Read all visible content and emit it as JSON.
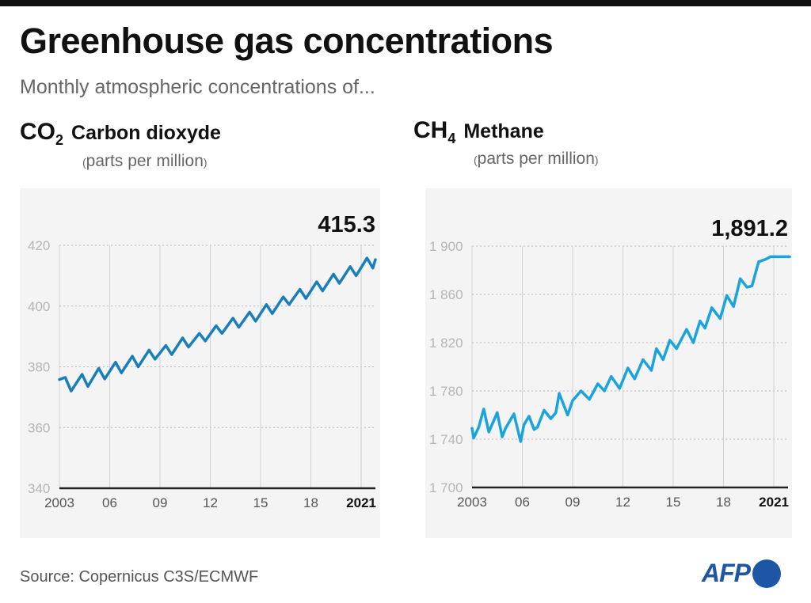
{
  "header": {
    "title": "Greenhouse gas concentrations",
    "subtitle": "Monthly atmospheric concentrations of..."
  },
  "source": "Source: Copernicus C3S/ECMWF",
  "logo": {
    "text": "AFP",
    "color": "#1e56a6"
  },
  "chart_data": [
    {
      "type": "line",
      "formula": "CO",
      "formula_sub": "2",
      "title": "Carbon dioxyde",
      "unit": "parts per million",
      "latest_value": "415.3",
      "color": "#1a7fb8",
      "ylim": [
        340,
        420
      ],
      "yticks": [
        "340",
        "360",
        "380",
        "400",
        "420"
      ],
      "xlim": [
        2003,
        2021.85
      ],
      "xticks": [
        {
          "x": 2003,
          "label": "2003"
        },
        {
          "x": 2006,
          "label": "06"
        },
        {
          "x": 2009,
          "label": "09"
        },
        {
          "x": 2012,
          "label": "12"
        },
        {
          "x": 2015,
          "label": "15"
        },
        {
          "x": 2018,
          "label": "18"
        },
        {
          "x": 2021,
          "label": "2021",
          "bold": true
        }
      ],
      "grid": true,
      "x": [
        2003.0,
        2003.35,
        2003.7,
        2004.35,
        2004.7,
        2005.35,
        2005.7,
        2006.35,
        2006.7,
        2007.35,
        2007.7,
        2008.35,
        2008.7,
        2009.35,
        2009.7,
        2010.35,
        2010.7,
        2011.35,
        2011.7,
        2012.35,
        2012.7,
        2013.35,
        2013.7,
        2014.35,
        2014.7,
        2015.35,
        2015.7,
        2016.35,
        2016.7,
        2017.35,
        2017.7,
        2018.35,
        2018.7,
        2019.35,
        2019.7,
        2020.35,
        2020.7,
        2021.35,
        2021.7,
        2021.85
      ],
      "y": [
        375.8,
        376.5,
        372,
        377.5,
        373.5,
        379.5,
        376,
        381.5,
        378,
        383.5,
        380,
        385.5,
        382.5,
        387,
        384,
        389.5,
        386.5,
        391,
        388.5,
        393.5,
        391,
        396,
        393,
        398,
        395,
        400.5,
        397.5,
        403,
        400.5,
        405.5,
        402.5,
        408,
        405,
        410.5,
        407.5,
        413,
        410,
        415.8,
        412.5,
        415.3
      ]
    },
    {
      "type": "line",
      "formula": "CH",
      "formula_sub": "4",
      "title": "Methane",
      "unit": "parts per million",
      "latest_value": "1,891.2",
      "color": "#1ba3dc",
      "ylim": [
        1700,
        1900
      ],
      "yticks": [
        "1 700",
        "1 740",
        "1 780",
        "1 820",
        "1 860",
        "1 900"
      ],
      "xlim": [
        2003,
        2021.95
      ],
      "xticks": [
        {
          "x": 2003,
          "label": "2003"
        },
        {
          "x": 2006,
          "label": "06"
        },
        {
          "x": 2009,
          "label": "09"
        },
        {
          "x": 2012,
          "label": "12"
        },
        {
          "x": 2015,
          "label": "15"
        },
        {
          "x": 2018,
          "label": "18"
        },
        {
          "x": 2021,
          "label": "2021",
          "bold": true
        }
      ],
      "grid": true,
      "x": [
        2003.0,
        2003.1,
        2003.4,
        2003.7,
        2004.0,
        2004.5,
        2004.8,
        2005.0,
        2005.5,
        2005.9,
        2006.1,
        2006.4,
        2006.7,
        2006.9,
        2007.3,
        2007.7,
        2008.0,
        2008.2,
        2008.7,
        2009.0,
        2009.5,
        2010.0,
        2010.5,
        2010.9,
        2011.3,
        2011.8,
        2012.3,
        2012.7,
        2013.2,
        2013.7,
        2014.0,
        2014.4,
        2014.8,
        2015.2,
        2015.8,
        2016.2,
        2016.6,
        2016.9,
        2017.3,
        2017.8,
        2018.2,
        2018.6,
        2019.0,
        2019.4,
        2019.7,
        2020.1,
        2020.5,
        2020.8,
        2021.0,
        2021.95
      ],
      "y": [
        1749,
        1741,
        1750,
        1765,
        1746,
        1762,
        1742,
        1749,
        1761,
        1738,
        1752,
        1759,
        1748,
        1750,
        1764,
        1757,
        1762,
        1778,
        1760,
        1772,
        1780,
        1773,
        1786,
        1780,
        1792,
        1782,
        1799,
        1790,
        1806,
        1797,
        1815,
        1806,
        1822,
        1815,
        1831,
        1820,
        1838,
        1832,
        1849,
        1840,
        1859,
        1850,
        1873,
        1866,
        1867,
        1887,
        1889,
        1891.2,
        1891.2,
        1891.2
      ]
    }
  ]
}
